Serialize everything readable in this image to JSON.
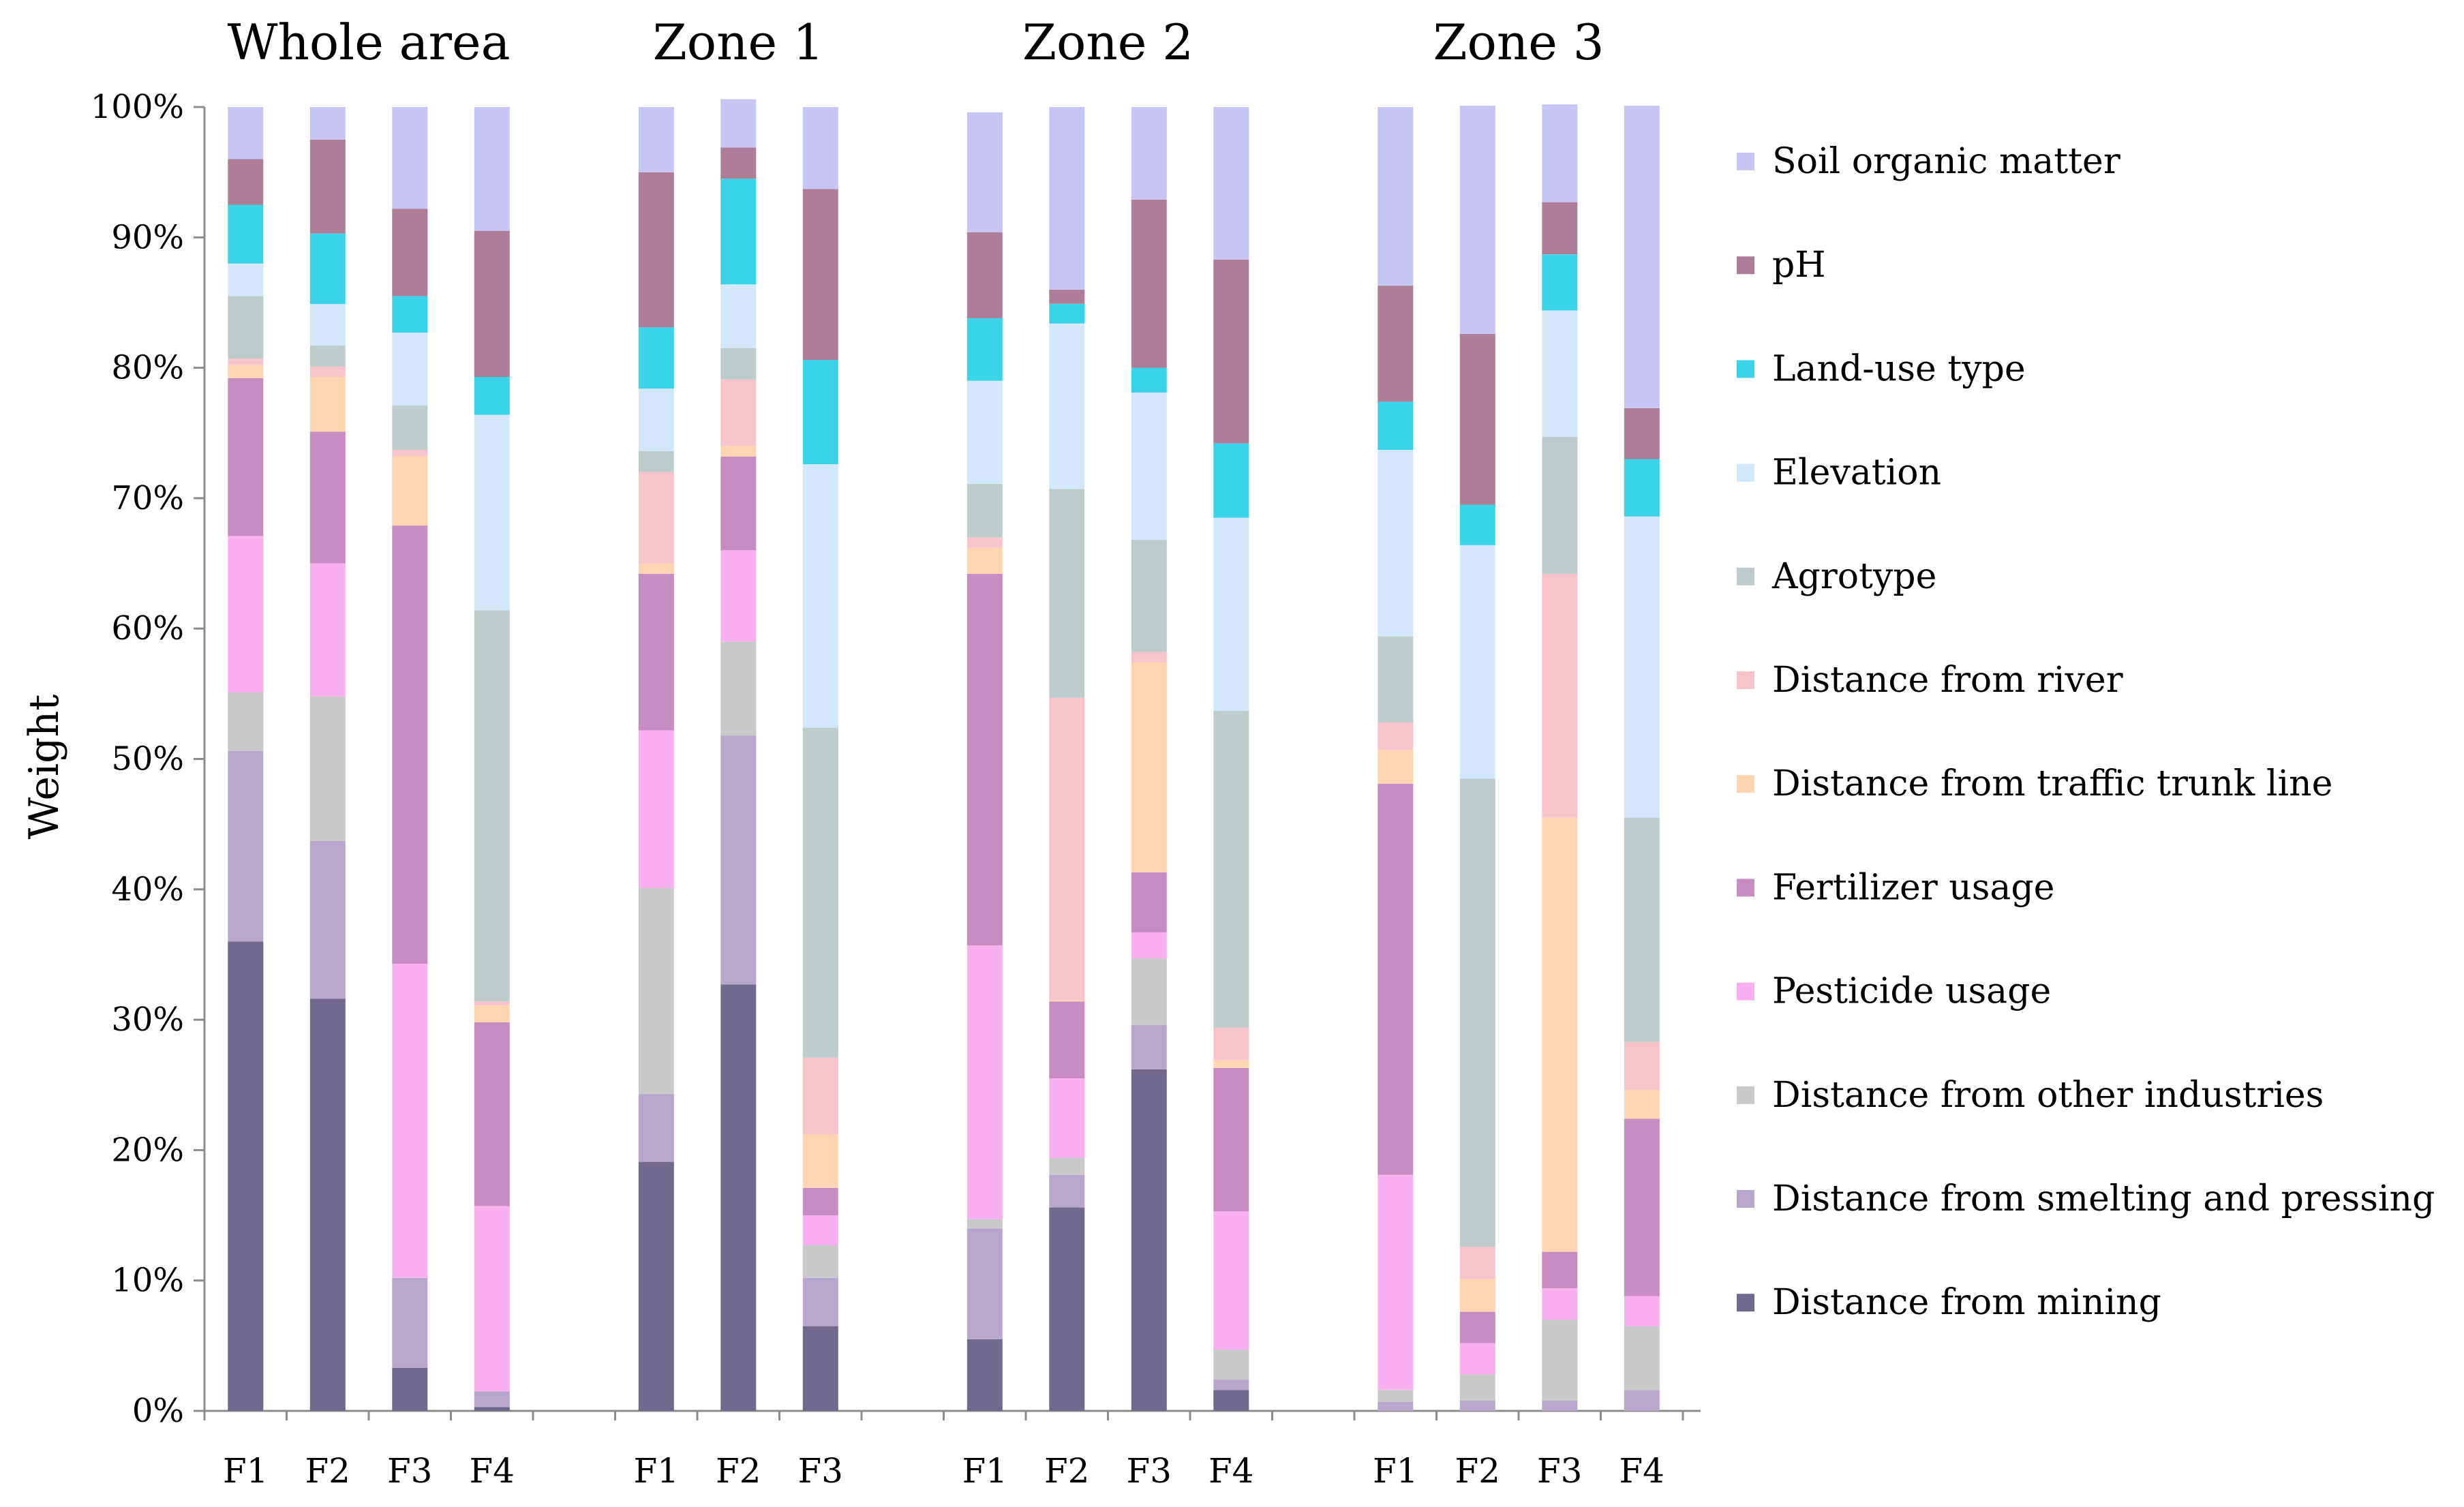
{
  "chart_data": {
    "type": "bar",
    "stacked": true,
    "normalized": true,
    "ylabel": "Weight",
    "ylim": [
      0,
      100
    ],
    "ytick_labels": [
      "0%",
      "10%",
      "20%",
      "30%",
      "40%",
      "50%",
      "60%",
      "70%",
      "80%",
      "90%",
      "100%"
    ],
    "groups": [
      {
        "name": "Whole area",
        "categories": [
          "F1",
          "F2",
          "F3",
          "F4"
        ]
      },
      {
        "name": "Zone 1",
        "categories": [
          "F1",
          "F2",
          "F3"
        ]
      },
      {
        "name": "Zone 2",
        "categories": [
          "F1",
          "F2",
          "F3",
          "F4"
        ]
      },
      {
        "name": "Zone 3",
        "categories": [
          "F1",
          "F2",
          "F3",
          "F4"
        ]
      }
    ],
    "series": [
      {
        "name": "Distance from mining",
        "color": "#72698F",
        "values": [
          36.0,
          31.6,
          3.3,
          0.3,
          19.1,
          32.7,
          6.5,
          5.5,
          15.6,
          26.2,
          1.6,
          0.0,
          0.0,
          0.0,
          0.0
        ]
      },
      {
        "name": "Distance from smelting and pressing",
        "color": "#B7A7CD",
        "values": [
          14.6,
          12.1,
          6.9,
          1.2,
          5.2,
          19.1,
          3.7,
          8.5,
          2.5,
          3.4,
          0.8,
          0.7,
          0.8,
          0.8,
          1.6
        ]
      },
      {
        "name": "Distance from other industries",
        "color": "#C9C9C9",
        "values": [
          4.5,
          11.1,
          0.0,
          0.0,
          15.8,
          7.2,
          2.5,
          0.7,
          1.3,
          5.1,
          2.3,
          0.9,
          2.0,
          6.2,
          4.9
        ]
      },
      {
        "name": "Pesticide usage",
        "color": "#F9B0F1",
        "values": [
          12.0,
          10.2,
          24.1,
          14.2,
          12.1,
          7.0,
          2.3,
          21.0,
          6.1,
          2.0,
          10.6,
          16.5,
          2.4,
          2.4,
          2.3
        ]
      },
      {
        "name": "Fertilizer usage",
        "color": "#C78CC2",
        "values": [
          12.1,
          10.1,
          33.6,
          14.1,
          12.0,
          7.2,
          2.1,
          28.5,
          5.9,
          4.6,
          11.0,
          30.0,
          2.4,
          2.8,
          13.6
        ]
      },
      {
        "name": "Distance from traffic trunk line",
        "color": "#FDD5B1",
        "values": [
          1.0,
          4.2,
          5.3,
          1.3,
          0.8,
          0.8,
          4.1,
          2.0,
          0.1,
          16.1,
          0.6,
          2.6,
          2.5,
          33.3,
          2.2
        ]
      },
      {
        "name": "Distance from river",
        "color": "#F8C4CC",
        "values": [
          0.5,
          0.8,
          0.5,
          0.3,
          7.0,
          5.1,
          5.9,
          0.8,
          23.2,
          0.8,
          2.5,
          2.1,
          2.5,
          18.7,
          3.7
        ]
      },
      {
        "name": "Agrotype",
        "color": "#BECCCB",
        "values": [
          4.8,
          1.6,
          3.4,
          30.0,
          1.6,
          2.4,
          25.3,
          4.1,
          16.0,
          8.6,
          24.3,
          6.6,
          35.9,
          10.5,
          17.2
        ]
      },
      {
        "name": "Elevation",
        "color": "#D2E7FA",
        "values": [
          2.5,
          3.2,
          5.6,
          15.0,
          4.8,
          4.9,
          20.2,
          7.9,
          12.7,
          11.3,
          14.8,
          14.3,
          17.9,
          9.7,
          23.1
        ]
      },
      {
        "name": "Land-use type",
        "color": "#3BD3E8",
        "values": [
          4.5,
          5.4,
          2.8,
          2.9,
          4.7,
          8.1,
          8.0,
          4.8,
          1.5,
          1.9,
          5.7,
          3.7,
          3.1,
          4.3,
          4.4
        ]
      },
      {
        "name": "pH",
        "color": "#AE7E98",
        "values": [
          3.5,
          7.2,
          6.7,
          11.2,
          11.9,
          2.4,
          13.1,
          6.6,
          1.1,
          12.9,
          14.1,
          8.9,
          13.1,
          4.0,
          3.9
        ]
      },
      {
        "name": "Soil organic matter",
        "color": "#C7C5F3",
        "values": [
          4.0,
          2.5,
          7.8,
          9.5,
          5.0,
          3.7,
          6.3,
          9.2,
          14.0,
          7.1,
          11.7,
          13.7,
          17.5,
          7.5,
          23.2
        ]
      }
    ]
  }
}
